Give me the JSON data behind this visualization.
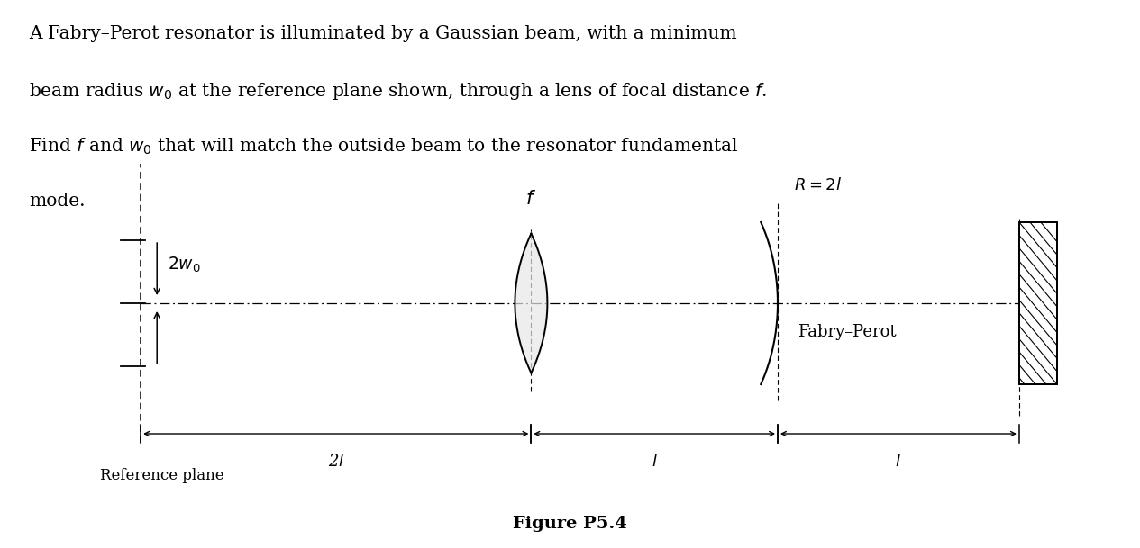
{
  "text_lines": [
    "A Fabry–Perot resonator is illuminated by a Gaussian beam, with a minimum",
    "beam radius $w_0$ at the reference plane shown, through a lens of focal distance $f$.",
    "Find $f$ and $w_0$ that will match the outside beam to the resonator fundamental",
    "mode."
  ],
  "figure_label": "Figure P5.4",
  "reference_plane_label": "Reference plane",
  "two_w0_label": "$2w_0$",
  "f_label": "$f$",
  "R_label": "$R = 2l$",
  "fabry_perot_label": "Fabry–Perot",
  "dim_2l_label": "2$l$",
  "dim_l1_label": "$l$",
  "dim_l2_label": "$l$",
  "bg_color": "#ffffff",
  "line_color": "#000000",
  "fontsize_text": 14.5,
  "fontsize_labels": 13,
  "fontsize_figure": 14
}
